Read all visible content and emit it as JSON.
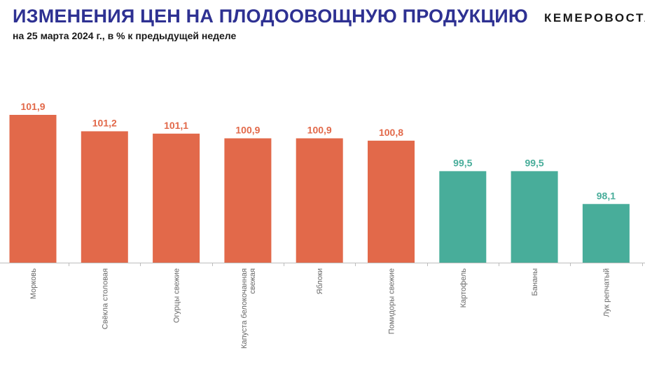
{
  "header": {
    "title": "ИЗМЕНЕНИЯ ЦЕН НА ПЛОДООВОЩНУЮ ПРОДУКЦИЮ",
    "subtitle": "на 25 марта 2024 г., в % к предыдущей неделе",
    "brand": "КЕМЕРОВОСТАТ"
  },
  "colors": {
    "increase": "#e2694a",
    "decrease": "#48ad9a",
    "axis": "#bdbdbd"
  },
  "chart_data": {
    "type": "bar",
    "title": "ИЗМЕНЕНИЯ ЦЕН НА ПЛОДООВОЩНУЮ ПРОДУКЦИЮ",
    "subtitle": "на 25 марта 2024 г., в % к предыдущей неделе",
    "categories": [
      "Морковь",
      "Свёкла столовая",
      "Огурцы свежие",
      "Капуста белокочанная свежая",
      "Яблоки",
      "Помидоры свежие",
      "Картофель",
      "Бананы",
      "Лук репчатый"
    ],
    "values": [
      101.9,
      101.2,
      101.1,
      100.9,
      100.9,
      100.8,
      99.5,
      99.5,
      98.1
    ],
    "value_labels": [
      "101,9",
      "101,2",
      "101,1",
      "100,9",
      "100,9",
      "100,8",
      "99,5",
      "99,5",
      "98,1"
    ],
    "ylim": [
      95.6,
      101.9
    ],
    "grid": false,
    "legend": "none",
    "xlabel": "",
    "ylabel": ""
  }
}
